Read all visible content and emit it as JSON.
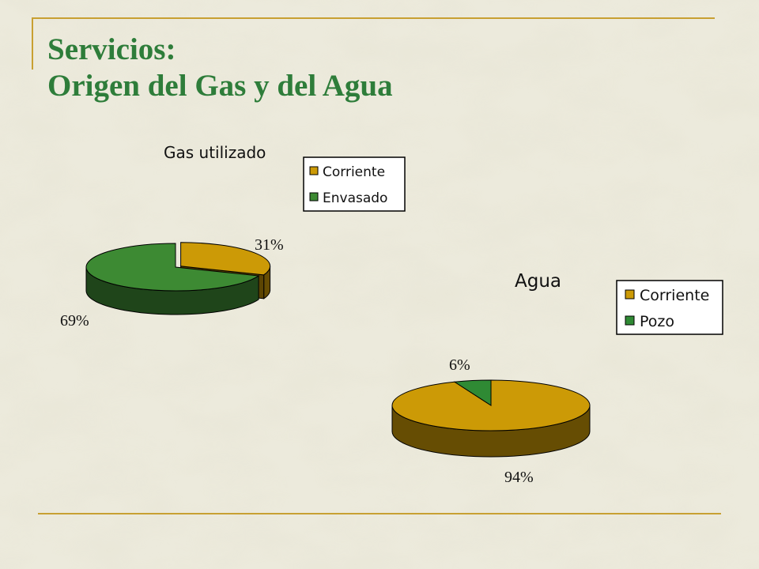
{
  "slide": {
    "title_line1": "Servicios:",
    "title_line2": "Origen del Gas y del Agua"
  },
  "colors": {
    "title": "#2e7d3a",
    "accent_rule": "#c8a032",
    "corriente": "#cc9a06",
    "corriente_side": "#6b4e05",
    "envasado": "#3d8a33",
    "envasado_side": "#1f4a1a",
    "pozo": "#2f8a34"
  },
  "chart_data": [
    {
      "type": "pie",
      "title": "Gas utilizado",
      "categories": [
        "Corriente",
        "Envasado"
      ],
      "values": [
        31,
        69
      ],
      "labels": [
        "31%",
        "69%"
      ],
      "legend": [
        "Corriente",
        "Envasado"
      ],
      "legend_position": "top-right"
    },
    {
      "type": "pie",
      "title": "Agua",
      "categories": [
        "Corriente",
        "Pozo"
      ],
      "values": [
        94,
        6
      ],
      "labels": [
        "94%",
        "6%"
      ],
      "legend": [
        "Corriente",
        "Pozo"
      ],
      "legend_position": "top-right"
    }
  ]
}
